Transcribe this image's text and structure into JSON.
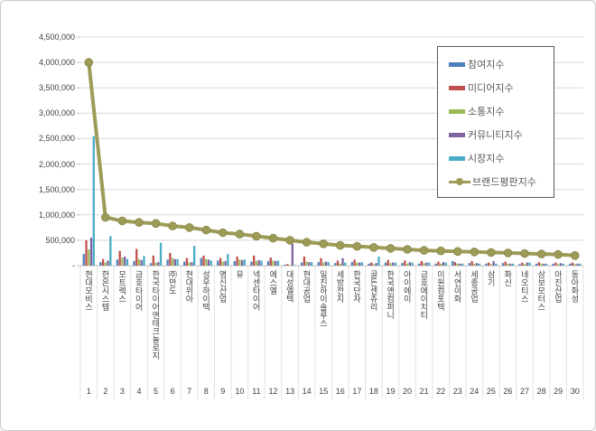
{
  "frame": {
    "background": "#ffffff",
    "border_color": "#c9c9c9"
  },
  "colors": {
    "grid": "#d9d9d9",
    "axis": "#bfbfbf",
    "separator": "#e2e2e2",
    "tick_text": "#3f3f3f",
    "legend_text": "#595959",
    "legend_border": "#595959"
  },
  "chart_data": {
    "type": "bar",
    "title": "",
    "xlabel": "",
    "ylabel": "",
    "ylim": [
      0,
      4500000
    ],
    "ytick_step": 500000,
    "ytick_labels": [
      "-",
      "500,000",
      "1,000,000",
      "1,500,000",
      "2,000,000",
      "2,500,000",
      "3,000,000",
      "3,500,000",
      "4,000,000",
      "4,500,000"
    ],
    "grid": true,
    "legend_position": "upper-right",
    "categories": [
      "현대모비스",
      "한온시스템",
      "모트렉스",
      "금호타이어",
      "한국타이어앤테크놀로지",
      "㈜만도",
      "현대위아",
      "성우하이텍",
      "명신산업",
      "유",
      "넥센타이어",
      "에스엘",
      "대성엘텍",
      "현대공업",
      "일진하이솔루스",
      "세방전지",
      "한국단자",
      "골든센츄리",
      "한국앤컴퍼니",
      "아이에이",
      "금호에이치티",
      "이원컴포텍",
      "서연이화",
      "세종공업",
      "삼기",
      "화신",
      "네오티스",
      "삼보모터스",
      "아진산업",
      "동아화성"
    ],
    "category_numbers": [
      "1",
      "2",
      "3",
      "4",
      "5",
      "6",
      "7",
      "8",
      "9",
      "10",
      "11",
      "12",
      "13",
      "14",
      "15",
      "16",
      "17",
      "18",
      "19",
      "20",
      "21",
      "22",
      "23",
      "24",
      "25",
      "26",
      "27",
      "28",
      "29",
      "30"
    ],
    "series": [
      {
        "name": "참여지수",
        "style": "bar",
        "color": "#4F81BD",
        "values": [
          230000,
          70000,
          120000,
          90000,
          50000,
          120000,
          80000,
          150000,
          100000,
          90000,
          80000,
          90000,
          20000,
          60000,
          70000,
          50000,
          70000,
          40000,
          60000,
          50000,
          40000,
          40000,
          90000,
          50000,
          40000,
          50000,
          30000,
          40000,
          40000,
          40000
        ]
      },
      {
        "name": "미디어지수",
        "style": "bar",
        "color": "#C0504D",
        "values": [
          500000,
          130000,
          290000,
          330000,
          200000,
          250000,
          150000,
          200000,
          150000,
          180000,
          200000,
          160000,
          30000,
          180000,
          150000,
          100000,
          120000,
          60000,
          110000,
          100000,
          90000,
          80000,
          70000,
          90000,
          60000,
          80000,
          60000,
          70000,
          60000,
          60000
        ]
      },
      {
        "name": "소통지수",
        "style": "bar",
        "color": "#9BBB59",
        "values": [
          320000,
          60000,
          160000,
          130000,
          60000,
          150000,
          60000,
          130000,
          80000,
          120000,
          90000,
          100000,
          10000,
          80000,
          60000,
          40000,
          60000,
          30000,
          50000,
          40000,
          50000,
          40000,
          40000,
          40000,
          30000,
          40000,
          30000,
          40000,
          30000,
          30000
        ]
      },
      {
        "name": "커뮤니티지수",
        "style": "bar",
        "color": "#8064A2",
        "values": [
          550000,
          100000,
          180000,
          110000,
          70000,
          130000,
          70000,
          120000,
          90000,
          110000,
          110000,
          90000,
          430000,
          70000,
          80000,
          150000,
          60000,
          50000,
          60000,
          70000,
          60000,
          70000,
          40000,
          50000,
          90000,
          40000,
          60000,
          40000,
          50000,
          40000
        ]
      },
      {
        "name": "시장지수",
        "style": "bar",
        "color": "#4BACC6",
        "values": [
          2550000,
          580000,
          130000,
          190000,
          450000,
          130000,
          390000,
          100000,
          230000,
          120000,
          100000,
          100000,
          10000,
          70000,
          70000,
          60000,
          70000,
          180000,
          60000,
          60000,
          60000,
          60000,
          40000,
          40000,
          40000,
          40000,
          60000,
          40000,
          40000,
          40000
        ]
      },
      {
        "name": "브랜드평판지수",
        "style": "line",
        "color": "#9C9B57",
        "marker_edge": "#8b8748",
        "values": [
          4000000,
          950000,
          880000,
          850000,
          830000,
          780000,
          750000,
          700000,
          650000,
          620000,
          580000,
          540000,
          500000,
          460000,
          430000,
          400000,
          380000,
          360000,
          340000,
          320000,
          300000,
          290000,
          280000,
          270000,
          260000,
          250000,
          240000,
          230000,
          220000,
          200000
        ]
      }
    ]
  }
}
